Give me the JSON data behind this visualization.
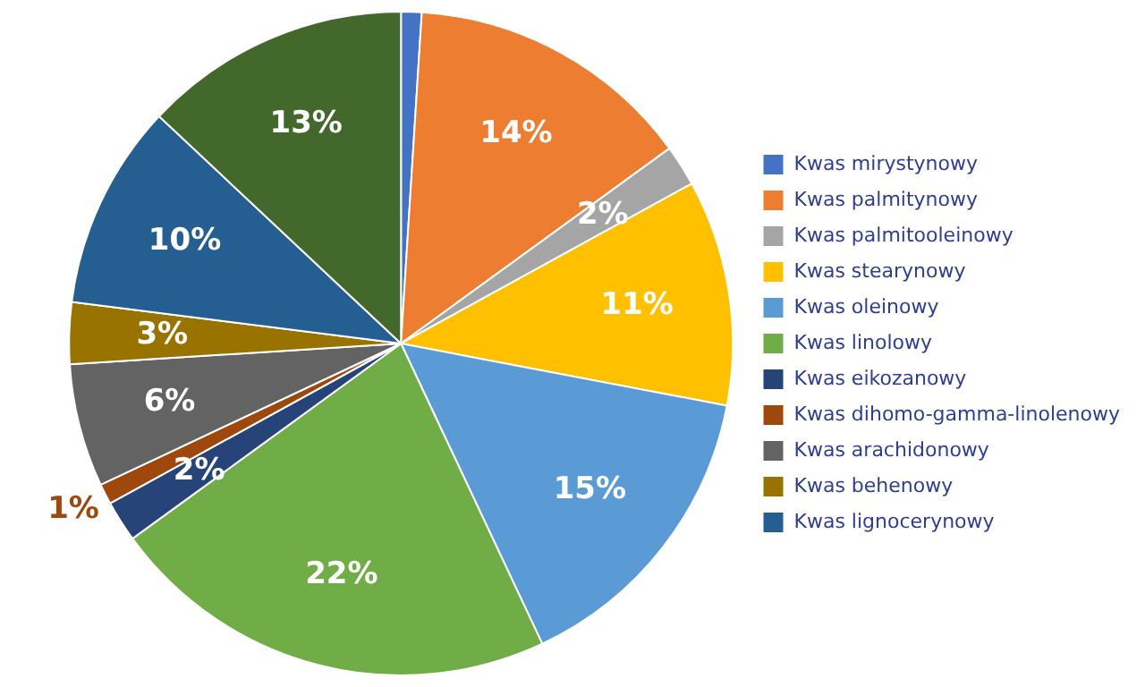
{
  "chart_data": {
    "type": "pie",
    "categories": [
      "Kwas mirystynowy",
      "Kwas palmitynowy",
      "Kwas palmitooleinowy",
      "Kwas stearynowy",
      "Kwas oleinowy",
      "Kwas linolowy",
      "Kwas eikozanowy",
      "Kwas dihomo-gamma-linolenowy",
      "Kwas arachidonowy",
      "Kwas behenowy",
      "Kwas lignocerynowy",
      null
    ],
    "values": [
      1,
      14,
      2,
      11,
      15,
      22,
      2,
      1,
      6,
      3,
      10,
      13
    ],
    "value_labels": [
      null,
      "14%",
      "2%",
      "11%",
      "15%",
      "22%",
      "2%",
      "1%",
      "6%",
      "3%",
      "10%",
      "13%"
    ],
    "colors": [
      "#4472c4",
      "#ed7d31",
      "#a5a5a5",
      "#ffc000",
      "#5b9bd5",
      "#70ad47",
      "#264478",
      "#9e480e",
      "#636363",
      "#997300",
      "#255e91",
      "#43682b"
    ],
    "legend": "right"
  }
}
